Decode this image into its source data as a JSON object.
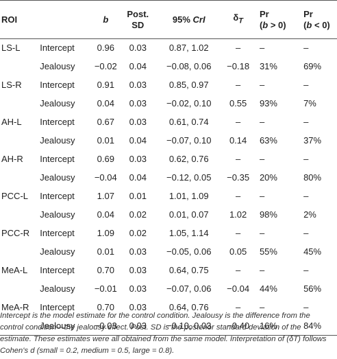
{
  "header": {
    "roi": "ROI",
    "term": "",
    "b": "b",
    "post_sd_1": "Post.",
    "post_sd_2": "SD",
    "cri_prefix": "95% ",
    "cri_suffix": "CrI",
    "delta": "δ",
    "delta_sub": "T",
    "pr_pos_1": "Pr",
    "pr_pos_2a": "(",
    "pr_pos_2b": "b",
    "pr_pos_2c": " > 0)",
    "pr_neg_1": "Pr",
    "pr_neg_2a": "(",
    "pr_neg_2b": "b",
    "pr_neg_2c": " < 0)"
  },
  "rows": [
    {
      "roi": "LS-L",
      "term": "Intercept",
      "b": "0.96",
      "sd": "0.03",
      "cri": "0.87, 1.02",
      "dt": "–",
      "prpos": "–",
      "prneg": "–"
    },
    {
      "roi": "",
      "term": "Jealousy",
      "b": "−0.02",
      "sd": "0.04",
      "cri": "−0.08, 0.06",
      "dt": "−0.18",
      "prpos": "31%",
      "prneg": "69%"
    },
    {
      "roi": "LS-R",
      "term": "Intercept",
      "b": "0.91",
      "sd": "0.03",
      "cri": "0.85, 0.97",
      "dt": "–",
      "prpos": "–",
      "prneg": "–"
    },
    {
      "roi": "",
      "term": "Jealousy",
      "b": "0.04",
      "sd": "0.03",
      "cri": "−0.02, 0.10",
      "dt": "0.55",
      "prpos": "93%",
      "prneg": "7%"
    },
    {
      "roi": "AH-L",
      "term": "Intercept",
      "b": "0.67",
      "sd": "0.03",
      "cri": "0.61, 0.74",
      "dt": "–",
      "prpos": "–",
      "prneg": "–"
    },
    {
      "roi": "",
      "term": "Jealousy",
      "b": "0.01",
      "sd": "0.04",
      "cri": "−0.07, 0.10",
      "dt": "0.14",
      "prpos": "63%",
      "prneg": "37%"
    },
    {
      "roi": "AH-R",
      "term": "Intercept",
      "b": "0.69",
      "sd": "0.03",
      "cri": "0.62, 0.76",
      "dt": "–",
      "prpos": "–",
      "prneg": "–"
    },
    {
      "roi": "",
      "term": "Jealousy",
      "b": "−0.04",
      "sd": "0.04",
      "cri": "−0.12, 0.05",
      "dt": "−0.35",
      "prpos": "20%",
      "prneg": "80%"
    },
    {
      "roi": "PCC-L",
      "term": "Intercept",
      "b": "1.07",
      "sd": "0.01",
      "cri": "1.01, 1.09",
      "dt": "–",
      "prpos": "–",
      "prneg": "–"
    },
    {
      "roi": "",
      "term": "Jealousy",
      "b": "0.04",
      "sd": "0.02",
      "cri": "0.01, 0.07",
      "dt": "1.02",
      "prpos": "98%",
      "prneg": "2%"
    },
    {
      "roi": "PCC-R",
      "term": "Intercept",
      "b": "1.09",
      "sd": "0.02",
      "cri": "1.05, 1.14",
      "dt": "–",
      "prpos": "–",
      "prneg": "–"
    },
    {
      "roi": "",
      "term": "Jealousy",
      "b": "0.01",
      "sd": "0.03",
      "cri": "−0.05, 0.06",
      "dt": "0.05",
      "prpos": "55%",
      "prneg": "45%"
    },
    {
      "roi": "MeA-L",
      "term": "Intercept",
      "b": "0.70",
      "sd": "0.03",
      "cri": "0.64, 0.75",
      "dt": "–",
      "prpos": "–",
      "prneg": "–"
    },
    {
      "roi": "",
      "term": "Jealousy",
      "b": "−0.01",
      "sd": "0.03",
      "cri": "−0.07, 0.06",
      "dt": "−0.04",
      "prpos": "44%",
      "prneg": "56%"
    },
    {
      "roi": "MeA-R",
      "term": "Intercept",
      "b": "0.70",
      "sd": "0.03",
      "cri": "0.64, 0.76",
      "dt": "–",
      "prpos": "–",
      "prneg": "–"
    },
    {
      "roi": "",
      "term": "Jealousy",
      "b": "−0.03",
      "sd": "0.03",
      "cri": "−0.10, 0.03",
      "dt": "−0.40",
      "prpos": "16%",
      "prneg": "84%"
    }
  ],
  "footnote": "Intercept is the model estimate for the control condition. Jealousy is the difference from the control condition—the jealousy effect. Post. SD is the posterior standard deviation of the estimate. These estimates were all obtained from the same model. Interpretation of (δT) follows Cohen's d (small = 0.2, medium = 0.5, large = 0.8)."
}
